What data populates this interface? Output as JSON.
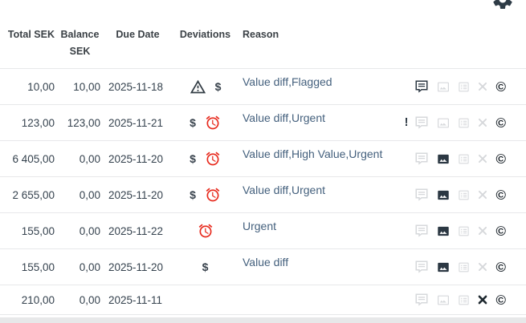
{
  "toolbar": {
    "gear_icon": "settings-gear"
  },
  "table": {
    "headers": {
      "total": "Total SEK",
      "balance": "Balance SEK",
      "due_date": "Due Date",
      "deviations": "Deviations",
      "reason": "Reason"
    },
    "rows": [
      {
        "total": "10,00",
        "balance": "10,00",
        "due_date": "2025-11-18",
        "deviations": [
          "warning",
          "dollar"
        ],
        "reason": "Value diff,Flagged",
        "exclaim": false,
        "actions": {
          "comment": "dark",
          "image": "light",
          "list": "light",
          "x": "light",
          "copyright": "dark"
        }
      },
      {
        "total": "123,00",
        "balance": "123,00",
        "due_date": "2025-11-21",
        "deviations": [
          "dollar",
          "alarm"
        ],
        "reason": "Value diff,Urgent",
        "exclaim": true,
        "actions": {
          "comment": "light",
          "image": "light",
          "list": "light",
          "x": "light",
          "copyright": "dark"
        }
      },
      {
        "total": "6 405,00",
        "balance": "0,00",
        "due_date": "2025-11-20",
        "deviations": [
          "dollar",
          "alarm"
        ],
        "reason": "Value diff,High Value,Urgent",
        "exclaim": false,
        "actions": {
          "comment": "light",
          "image": "dark",
          "list": "light",
          "x": "light",
          "copyright": "dark"
        }
      },
      {
        "total": "2 655,00",
        "balance": "0,00",
        "due_date": "2025-11-20",
        "deviations": [
          "dollar",
          "alarm"
        ],
        "reason": "Value diff,Urgent",
        "exclaim": false,
        "actions": {
          "comment": "light",
          "image": "dark",
          "list": "light",
          "x": "light",
          "copyright": "dark"
        }
      },
      {
        "total": "155,00",
        "balance": "0,00",
        "due_date": "2025-11-22",
        "deviations": [
          "alarm"
        ],
        "reason": "Urgent",
        "exclaim": false,
        "actions": {
          "comment": "light",
          "image": "dark",
          "list": "light",
          "x": "light",
          "copyright": "dark"
        }
      },
      {
        "total": "155,00",
        "balance": "0,00",
        "due_date": "2025-11-20",
        "deviations": [
          "dollar"
        ],
        "reason": "Value diff",
        "exclaim": false,
        "actions": {
          "comment": "light",
          "image": "dark",
          "list": "light",
          "x": "light",
          "copyright": "dark"
        }
      },
      {
        "total": "210,00",
        "balance": "0,00",
        "due_date": "2025-11-11",
        "deviations": [],
        "reason": "",
        "exclaim": false,
        "actions": {
          "comment": "light",
          "image": "light",
          "list": "light",
          "x": "dark",
          "copyright": "dark"
        }
      }
    ]
  },
  "icons": {
    "gear": "settings-gear",
    "warning": "warning-triangle",
    "dollar": "$",
    "alarm": "alarm-clock",
    "exclaim": "!",
    "comment": "speech-bubble",
    "image": "picture",
    "list": "list-lines",
    "x": "cross",
    "copyright": "©"
  },
  "colors": {
    "accent_red": "#e7281b",
    "icon_dark": "#2c3843",
    "icon_light": "#d6d8db",
    "text": "#35424e",
    "reason_text": "#44607d",
    "border": "#e7e8ea"
  }
}
